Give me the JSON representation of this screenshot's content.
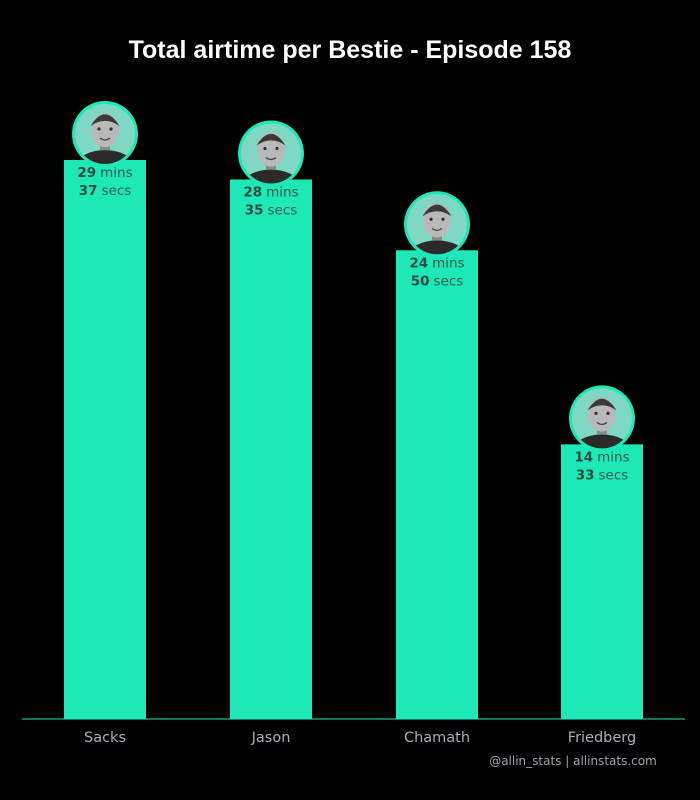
{
  "chart_data": {
    "type": "bar",
    "title": "Total airtime per Bestie - Episode 158",
    "xlabel": "",
    "ylabel": "",
    "categories": [
      "Sacks",
      "Jason",
      "Chamath",
      "Friedberg"
    ],
    "values_minutes": [
      29.6167,
      28.5833,
      24.8333,
      14.55
    ],
    "labels": [
      {
        "mins": "29",
        "mins_unit": "mins",
        "secs": "37",
        "secs_unit": "secs"
      },
      {
        "mins": "28",
        "mins_unit": "mins",
        "secs": "35",
        "secs_unit": "secs"
      },
      {
        "mins": "24",
        "mins_unit": "mins",
        "secs": "50",
        "secs_unit": "secs"
      },
      {
        "mins": "14",
        "mins_unit": "mins",
        "secs": "33",
        "secs_unit": "secs"
      }
    ],
    "ylim": [
      0,
      29.6167
    ],
    "grid": false,
    "legend": "none",
    "bar_color": "#1de9b6",
    "avatar_icon": "person-avatar-icon"
  },
  "footer": "@allin_stats | allinstats.com",
  "colors": {
    "background": "#000000",
    "baseline": "#1de9b6"
  }
}
